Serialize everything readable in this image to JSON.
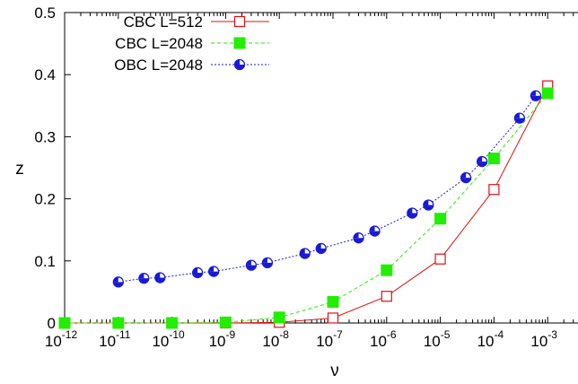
{
  "chart_data": {
    "type": "scatter",
    "xlabel": "ν",
    "ylabel": "z",
    "xscale": "log",
    "xlim": [
      1e-12,
      0.01
    ],
    "ylim": [
      0,
      0.5
    ],
    "x_tick_labels": [
      {
        "base": "10",
        "exp": "-12",
        "value": 1e-12
      },
      {
        "base": "10",
        "exp": "-11",
        "value": 1e-11
      },
      {
        "base": "10",
        "exp": "-10",
        "value": 1e-10
      },
      {
        "base": "10",
        "exp": "-9",
        "value": 1e-09
      },
      {
        "base": "10",
        "exp": "-8",
        "value": 1e-08
      },
      {
        "base": "10",
        "exp": "-7",
        "value": 1e-07
      },
      {
        "base": "10",
        "exp": "-6",
        "value": 1e-06
      },
      {
        "base": "10",
        "exp": "-5",
        "value": 1e-05
      },
      {
        "base": "10",
        "exp": "-4",
        "value": 0.0001
      },
      {
        "base": "10",
        "exp": "-3",
        "value": 0.001
      }
    ],
    "y_tick_labels": [
      {
        "label": "0",
        "value": 0
      },
      {
        "label": "0.1",
        "value": 0.1
      },
      {
        "label": "0.2",
        "value": 0.2
      },
      {
        "label": "0.3",
        "value": 0.3
      },
      {
        "label": "0.4",
        "value": 0.4
      },
      {
        "label": "0.5",
        "value": 0.5
      }
    ],
    "legend_position": "top-left",
    "grid": false,
    "series": [
      {
        "name": "CBC L=512",
        "color": "#dd1111",
        "marker": "open-square",
        "line": "solid",
        "points": [
          [
            1e-12,
            0
          ],
          [
            1e-11,
            0
          ],
          [
            1e-10,
            0
          ],
          [
            1e-09,
            0
          ],
          [
            1e-08,
            0.001
          ],
          [
            1e-07,
            0.008
          ],
          [
            1e-06,
            0.043
          ],
          [
            1e-05,
            0.103
          ],
          [
            0.0001,
            0.215
          ],
          [
            0.001,
            0.382
          ]
        ]
      },
      {
        "name": "CBC L=2048",
        "color": "#22ee00",
        "marker": "filled-square",
        "line": "dashed",
        "points": [
          [
            1e-12,
            0
          ],
          [
            1e-11,
            0
          ],
          [
            1e-10,
            0
          ],
          [
            1e-09,
            0.001
          ],
          [
            1e-08,
            0.009
          ],
          [
            1e-07,
            0.034
          ],
          [
            1e-06,
            0.085
          ],
          [
            1e-05,
            0.168
          ],
          [
            0.0001,
            0.265
          ],
          [
            0.001,
            0.37
          ]
        ]
      },
      {
        "name": "OBC L=2048",
        "color": "#1a1ad6",
        "marker": "half-filled-circle",
        "line": "dotted",
        "points": [
          [
            1e-11,
            0.066
          ],
          [
            3e-11,
            0.072
          ],
          [
            6e-11,
            0.073
          ],
          [
            3e-10,
            0.081
          ],
          [
            6e-10,
            0.083
          ],
          [
            3e-09,
            0.093
          ],
          [
            6e-09,
            0.097
          ],
          [
            3e-08,
            0.112
          ],
          [
            6e-08,
            0.12
          ],
          [
            3e-07,
            0.137
          ],
          [
            6e-07,
            0.148
          ],
          [
            3e-06,
            0.177
          ],
          [
            6e-06,
            0.19
          ],
          [
            3e-05,
            0.234
          ],
          [
            6e-05,
            0.26
          ],
          [
            0.0003,
            0.33
          ],
          [
            0.0006,
            0.366
          ]
        ]
      }
    ]
  }
}
